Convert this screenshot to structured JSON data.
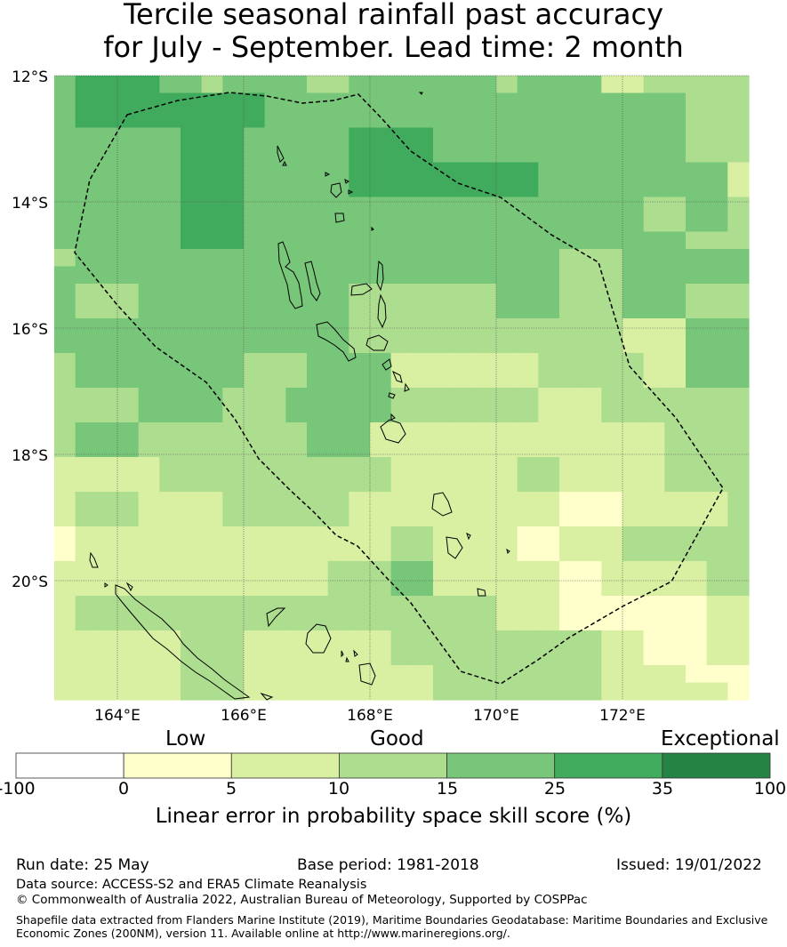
{
  "title": {
    "line1": "Tercile seasonal rainfall past accuracy",
    "line2": "for July - September. Lead time: 2 month"
  },
  "map": {
    "lon_range": [
      163.0,
      174.0
    ],
    "lat_range": [
      -21.9,
      -12.0
    ],
    "lat_ticks": [
      "12°S",
      "14°S",
      "16°S",
      "18°S",
      "20°S"
    ],
    "lon_ticks": [
      "164°E",
      "166°E",
      "168°E",
      "170°E",
      "172°E"
    ],
    "legend_colors": {
      "nodata_or_negative": "#ffffff",
      "0_5": "#ffffcc",
      "5_10": "#d9f0a3",
      "10_15": "#addd8e",
      "15_25": "#78c679",
      "25_35": "#41ab5d",
      "35_100": "#238443"
    },
    "grid_bins": [
      [
        4,
        5,
        5,
        5,
        5,
        4,
        4,
        3,
        4,
        4,
        4,
        4,
        3,
        3,
        4,
        4,
        4,
        4,
        4,
        4,
        4,
        3,
        4,
        4,
        4,
        4,
        2,
        2,
        3,
        3,
        3,
        3,
        3
      ],
      [
        4,
        5,
        5,
        5,
        5,
        5,
        5,
        5,
        5,
        5,
        4,
        4,
        4,
        4,
        4,
        4,
        4,
        4,
        4,
        4,
        4,
        4,
        4,
        4,
        4,
        4,
        4,
        4,
        4,
        4,
        3,
        3,
        3
      ],
      [
        4,
        5,
        5,
        5,
        5,
        5,
        5,
        5,
        5,
        5,
        4,
        4,
        4,
        4,
        4,
        4,
        4,
        4,
        4,
        4,
        4,
        4,
        4,
        4,
        4,
        4,
        4,
        4,
        4,
        4,
        3,
        3,
        3
      ],
      [
        4,
        4,
        4,
        4,
        4,
        4,
        5,
        5,
        5,
        4,
        4,
        4,
        4,
        4,
        5,
        5,
        5,
        5,
        4,
        4,
        4,
        4,
        4,
        4,
        4,
        4,
        4,
        4,
        4,
        4,
        3,
        3,
        3
      ],
      [
        4,
        4,
        4,
        4,
        4,
        4,
        5,
        5,
        5,
        4,
        4,
        4,
        4,
        4,
        5,
        5,
        5,
        5,
        4,
        4,
        4,
        4,
        4,
        4,
        4,
        4,
        4,
        4,
        4,
        4,
        3,
        3,
        3
      ],
      [
        4,
        4,
        4,
        4,
        4,
        4,
        5,
        5,
        5,
        4,
        4,
        4,
        4,
        4,
        5,
        5,
        5,
        5,
        5,
        5,
        5,
        5,
        5,
        4,
        4,
        4,
        4,
        4,
        4,
        4,
        4,
        4,
        2
      ],
      [
        4,
        4,
        4,
        4,
        4,
        4,
        5,
        5,
        5,
        4,
        4,
        4,
        4,
        4,
        5,
        5,
        5,
        5,
        5,
        5,
        5,
        5,
        5,
        4,
        4,
        4,
        4,
        4,
        4,
        4,
        4,
        4,
        2
      ],
      [
        4,
        4,
        4,
        4,
        4,
        4,
        5,
        5,
        5,
        4,
        4,
        4,
        4,
        4,
        4,
        4,
        4,
        4,
        4,
        4,
        4,
        4,
        4,
        4,
        4,
        4,
        4,
        4,
        3,
        3,
        4,
        4,
        3
      ],
      [
        4,
        4,
        4,
        4,
        4,
        4,
        5,
        5,
        5,
        4,
        4,
        4,
        4,
        4,
        4,
        4,
        4,
        4,
        4,
        4,
        4,
        4,
        4,
        4,
        4,
        4,
        4,
        4,
        3,
        3,
        4,
        4,
        3
      ],
      [
        4,
        4,
        4,
        4,
        4,
        4,
        5,
        5,
        5,
        4,
        4,
        4,
        4,
        4,
        4,
        4,
        4,
        4,
        4,
        4,
        4,
        4,
        4,
        4,
        4,
        4,
        4,
        4,
        4,
        4,
        3,
        3,
        3
      ],
      [
        3,
        4,
        4,
        4,
        4,
        4,
        4,
        4,
        4,
        4,
        4,
        4,
        4,
        4,
        4,
        4,
        4,
        4,
        4,
        4,
        4,
        4,
        4,
        4,
        3,
        3,
        3,
        4,
        4,
        4,
        4,
        4,
        4
      ],
      [
        4,
        4,
        4,
        4,
        4,
        4,
        4,
        4,
        4,
        4,
        4,
        4,
        4,
        4,
        4,
        4,
        4,
        4,
        4,
        4,
        4,
        4,
        4,
        4,
        3,
        3,
        3,
        4,
        4,
        4,
        4,
        4,
        4
      ],
      [
        4,
        3,
        3,
        3,
        4,
        4,
        4,
        4,
        4,
        4,
        4,
        4,
        4,
        4,
        3,
        3,
        3,
        3,
        3,
        3,
        3,
        4,
        4,
        4,
        3,
        3,
        3,
        4,
        4,
        4,
        3,
        3,
        3
      ],
      [
        4,
        3,
        3,
        3,
        4,
        4,
        4,
        4,
        4,
        4,
        4,
        4,
        4,
        4,
        3,
        3,
        3,
        3,
        3,
        3,
        3,
        4,
        4,
        4,
        3,
        3,
        3,
        4,
        4,
        4,
        3,
        3,
        3
      ],
      [
        4,
        4,
        4,
        4,
        4,
        4,
        4,
        4,
        4,
        4,
        4,
        4,
        4,
        4,
        3,
        3,
        3,
        3,
        3,
        3,
        3,
        3,
        3,
        3,
        3,
        3,
        3,
        2,
        2,
        2,
        4,
        4,
        4
      ],
      [
        4,
        4,
        4,
        4,
        4,
        4,
        4,
        4,
        4,
        4,
        4,
        4,
        4,
        4,
        3,
        3,
        3,
        3,
        3,
        3,
        3,
        3,
        3,
        3,
        3,
        3,
        3,
        2,
        2,
        2,
        4,
        4,
        4
      ],
      [
        3,
        4,
        4,
        4,
        4,
        4,
        4,
        4,
        4,
        3,
        3,
        3,
        4,
        4,
        4,
        4,
        2,
        2,
        2,
        2,
        2,
        2,
        2,
        3,
        3,
        3,
        3,
        3,
        2,
        2,
        4,
        4,
        4
      ],
      [
        3,
        4,
        4,
        4,
        4,
        4,
        4,
        4,
        4,
        3,
        3,
        3,
        4,
        4,
        4,
        4,
        2,
        2,
        2,
        2,
        2,
        2,
        2,
        3,
        3,
        3,
        3,
        3,
        2,
        2,
        4,
        4,
        4
      ],
      [
        3,
        3,
        3,
        3,
        4,
        4,
        4,
        4,
        3,
        3,
        3,
        4,
        4,
        4,
        4,
        4,
        3,
        3,
        3,
        3,
        3,
        3,
        3,
        2,
        2,
        2,
        3,
        3,
        3,
        3,
        3,
        3,
        3
      ],
      [
        3,
        3,
        3,
        3,
        4,
        4,
        4,
        4,
        3,
        3,
        3,
        4,
        4,
        4,
        4,
        4,
        3,
        3,
        3,
        3,
        3,
        3,
        3,
        2,
        2,
        2,
        3,
        3,
        3,
        3,
        3,
        3,
        3
      ],
      [
        3,
        4,
        4,
        4,
        3,
        3,
        3,
        3,
        3,
        3,
        3,
        3,
        4,
        4,
        4,
        2,
        2,
        2,
        2,
        2,
        2,
        2,
        2,
        2,
        2,
        2,
        2,
        2,
        2,
        3,
        3,
        3,
        3
      ],
      [
        3,
        4,
        4,
        4,
        3,
        3,
        3,
        3,
        3,
        3,
        3,
        3,
        4,
        4,
        4,
        2,
        2,
        2,
        2,
        2,
        2,
        2,
        2,
        2,
        2,
        2,
        2,
        2,
        2,
        3,
        3,
        3,
        3
      ],
      [
        2,
        2,
        2,
        2,
        2,
        3,
        3,
        3,
        3,
        3,
        3,
        3,
        3,
        3,
        3,
        3,
        2,
        2,
        2,
        2,
        2,
        2,
        3,
        3,
        2,
        2,
        2,
        2,
        2,
        3,
        3,
        3,
        3
      ],
      [
        2,
        2,
        2,
        2,
        2,
        3,
        3,
        3,
        3,
        3,
        3,
        3,
        3,
        3,
        3,
        3,
        2,
        2,
        2,
        2,
        2,
        2,
        3,
        3,
        2,
        2,
        2,
        2,
        2,
        3,
        3,
        3,
        3
      ],
      [
        2,
        3,
        3,
        3,
        2,
        2,
        2,
        2,
        3,
        3,
        3,
        3,
        3,
        3,
        2,
        2,
        2,
        2,
        2,
        2,
        2,
        2,
        2,
        2,
        1,
        1,
        1,
        2,
        2,
        2,
        2,
        2,
        3
      ],
      [
        2,
        3,
        3,
        3,
        2,
        2,
        2,
        2,
        3,
        3,
        3,
        3,
        3,
        3,
        2,
        2,
        2,
        2,
        2,
        2,
        2,
        2,
        2,
        2,
        1,
        1,
        1,
        2,
        2,
        2,
        2,
        2,
        3
      ],
      [
        1,
        2,
        2,
        2,
        2,
        2,
        2,
        2,
        2,
        2,
        2,
        2,
        2,
        2,
        2,
        2,
        3,
        3,
        2,
        2,
        2,
        2,
        1,
        1,
        2,
        2,
        2,
        3,
        3,
        3,
        3,
        3,
        3
      ],
      [
        1,
        2,
        2,
        2,
        2,
        2,
        2,
        2,
        2,
        2,
        2,
        2,
        2,
        2,
        2,
        2,
        3,
        3,
        2,
        2,
        2,
        2,
        1,
        1,
        2,
        2,
        2,
        3,
        3,
        3,
        3,
        3,
        3
      ],
      [
        2,
        2,
        2,
        2,
        2,
        2,
        2,
        2,
        2,
        2,
        2,
        2,
        2,
        3,
        3,
        3,
        4,
        4,
        2,
        2,
        2,
        2,
        2,
        2,
        1,
        1,
        2,
        2,
        2,
        2,
        2,
        3,
        3
      ],
      [
        2,
        2,
        2,
        2,
        2,
        2,
        2,
        2,
        2,
        2,
        2,
        2,
        2,
        3,
        3,
        3,
        4,
        4,
        2,
        2,
        2,
        2,
        2,
        2,
        1,
        1,
        2,
        2,
        2,
        2,
        2,
        3,
        3
      ],
      [
        2,
        3,
        3,
        3,
        3,
        3,
        3,
        3,
        3,
        3,
        3,
        3,
        3,
        3,
        3,
        3,
        3,
        3,
        3,
        3,
        3,
        2,
        2,
        2,
        1,
        1,
        1,
        1,
        1,
        1,
        1,
        2,
        2
      ],
      [
        2,
        3,
        3,
        3,
        3,
        3,
        3,
        3,
        3,
        3,
        3,
        3,
        3,
        3,
        3,
        3,
        3,
        3,
        3,
        3,
        3,
        2,
        2,
        2,
        1,
        1,
        1,
        1,
        1,
        1,
        1,
        2,
        2
      ],
      [
        2,
        2,
        2,
        2,
        2,
        2,
        3,
        3,
        3,
        2,
        2,
        2,
        2,
        2,
        2,
        2,
        3,
        3,
        3,
        3,
        3,
        3,
        3,
        3,
        3,
        3,
        2,
        2,
        1,
        1,
        1,
        2,
        2
      ],
      [
        2,
        2,
        2,
        2,
        2,
        2,
        3,
        3,
        3,
        2,
        2,
        2,
        2,
        2,
        2,
        2,
        3,
        3,
        3,
        3,
        3,
        3,
        3,
        3,
        3,
        3,
        2,
        2,
        1,
        1,
        1,
        2,
        2
      ],
      [
        2,
        2,
        2,
        2,
        2,
        2,
        3,
        3,
        3,
        2,
        2,
        2,
        2,
        2,
        2,
        2,
        2,
        2,
        3,
        3,
        3,
        3,
        3,
        3,
        3,
        3,
        2,
        2,
        2,
        2,
        1,
        1,
        1
      ],
      [
        2,
        2,
        2,
        2,
        2,
        2,
        3,
        3,
        3,
        2,
        2,
        2,
        2,
        2,
        2,
        2,
        2,
        2,
        3,
        3,
        3,
        3,
        3,
        3,
        3,
        3,
        2,
        2,
        2,
        2,
        2,
        2,
        1
      ]
    ]
  },
  "colorbar": {
    "category_labels": [
      "Low",
      "Good",
      "Exceptional"
    ],
    "ticks": [
      "-100",
      "0",
      "5",
      "10",
      "15",
      "25",
      "35",
      "100"
    ],
    "colors": [
      "#ffffff",
      "#ffffcc",
      "#d9f0a3",
      "#addd8e",
      "#78c679",
      "#41ab5d",
      "#238443"
    ],
    "title": "Linear error in probability space skill score (%)"
  },
  "footer": {
    "run_date": "Run date: 25 May",
    "base_period": "Base period: 1981-2018",
    "issued": "Issued: 19/01/2022",
    "data_source": "Data source: ACCESS-S2 and ERA5 Climate Reanalysis",
    "copyright": "© Commonwealth of Australia 2022, Australian Bureau of Meteorology, Supported by COSPPac",
    "shapefile_line1": "Shapefile data extracted from Flanders Marine Institute (2019), Maritime Boundaries Geodatabase: Maritime Boundaries and Exclusive",
    "shapefile_line2": "Economic Zones (200NM), version 11. Available online at http://www.marineregions.org/."
  }
}
